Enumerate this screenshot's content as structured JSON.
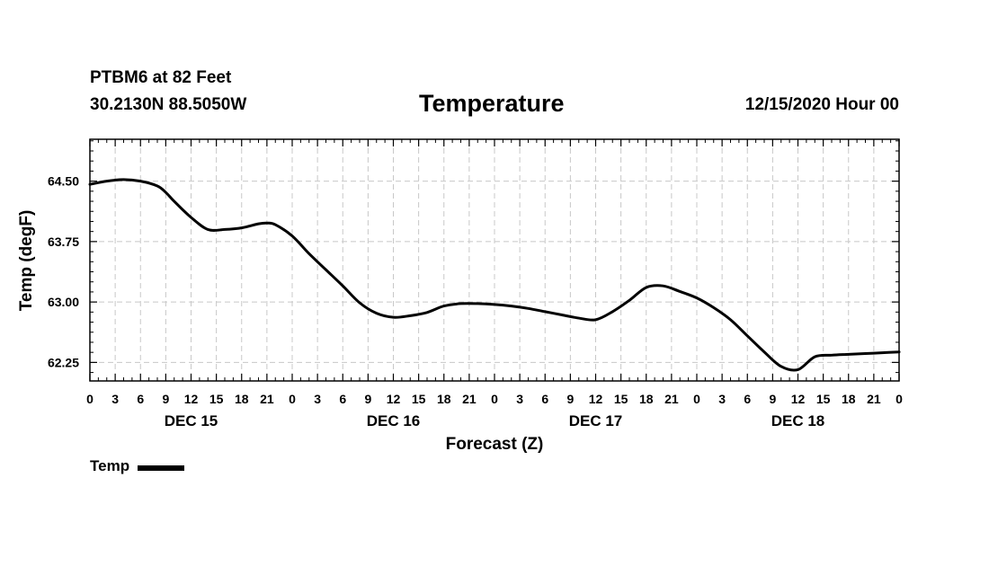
{
  "header": {
    "station": "PTBM6 at 82 Feet",
    "coords": "30.2130N 88.5050W",
    "datetime": "12/15/2020 Hour 00"
  },
  "chart_data": {
    "type": "line",
    "title": "Temperature",
    "xlabel": "Forecast (Z)",
    "ylabel": "Temp (degF)",
    "x_unit": "forecast hours since 12/15/2020 00Z",
    "xlim": [
      0,
      96
    ],
    "ylim": [
      62.02,
      65.02
    ],
    "yticks": [
      62.25,
      63.0,
      63.75,
      64.5
    ],
    "ytick_labels": [
      "62.25",
      "63.00",
      "63.75",
      "64.50"
    ],
    "xtick_labels": [
      "0",
      "3",
      "6",
      "9",
      "12",
      "15",
      "18",
      "21",
      "0",
      "3",
      "6",
      "9",
      "12",
      "15",
      "18",
      "21",
      "0",
      "3",
      "6",
      "9",
      "12",
      "15",
      "18",
      "21",
      "0",
      "3",
      "6",
      "9",
      "12",
      "15",
      "18",
      "21",
      "0"
    ],
    "day_labels": [
      {
        "hour": 12,
        "label": "DEC 15"
      },
      {
        "hour": 36,
        "label": "DEC 16"
      },
      {
        "hour": 60,
        "label": "DEC 17"
      },
      {
        "hour": 84,
        "label": "DEC 18"
      }
    ],
    "grid": true,
    "legend": "bottom-left",
    "series": [
      {
        "name": "Temp",
        "color": "#000000",
        "x": [
          0,
          2,
          4,
          6,
          8,
          9,
          10,
          12,
          14,
          16,
          18,
          20,
          21,
          22,
          24,
          26,
          28,
          30,
          32,
          34,
          36,
          38,
          40,
          42,
          44,
          46,
          48,
          50,
          52,
          54,
          56,
          58,
          60,
          62,
          64,
          66,
          68,
          70,
          72,
          74,
          76,
          78,
          80,
          82,
          84,
          86,
          88,
          90,
          92,
          94,
          96
        ],
        "y": [
          64.46,
          64.5,
          64.52,
          64.5,
          64.44,
          64.36,
          64.25,
          64.05,
          63.9,
          63.9,
          63.92,
          63.97,
          63.98,
          63.96,
          63.82,
          63.6,
          63.4,
          63.2,
          62.99,
          62.86,
          62.81,
          62.83,
          62.87,
          62.95,
          62.98,
          62.98,
          62.97,
          62.95,
          62.92,
          62.88,
          62.84,
          62.8,
          62.78,
          62.88,
          63.02,
          63.18,
          63.2,
          63.13,
          63.05,
          62.93,
          62.78,
          62.58,
          62.38,
          62.2,
          62.16,
          62.32,
          62.34,
          62.35,
          62.36,
          62.37,
          62.38
        ]
      }
    ]
  },
  "legend": {
    "label": "Temp"
  }
}
